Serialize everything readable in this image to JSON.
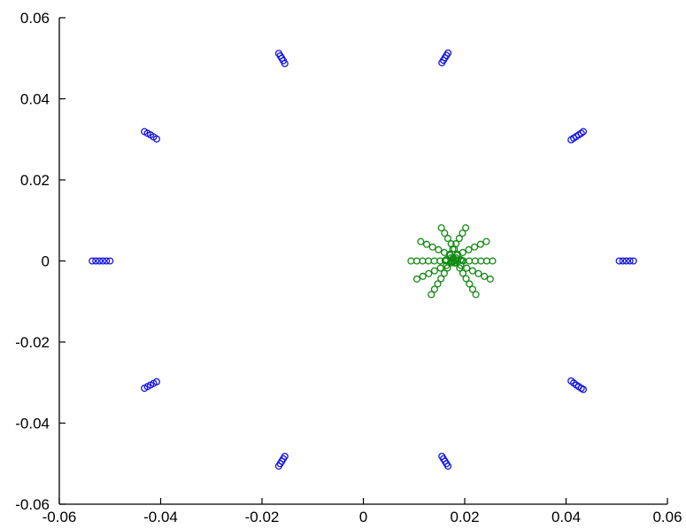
{
  "chart_data": {
    "type": "scatter",
    "title": "",
    "xlabel": "",
    "ylabel": "",
    "xlim": [
      -0.06,
      0.06
    ],
    "ylim": [
      -0.06,
      0.06
    ],
    "grid": false,
    "legend": "none",
    "xticks": [
      -0.06,
      -0.04,
      -0.02,
      0,
      0.02,
      0.04,
      0.06
    ],
    "yticks": [
      -0.06,
      -0.04,
      -0.02,
      0,
      0.02,
      0.04,
      0.06
    ],
    "xtick_labels": [
      "-0.06",
      "-0.04",
      "-0.02",
      "0",
      "0.02",
      "0.04",
      "0.06"
    ],
    "ytick_labels": [
      "-0.06",
      "-0.04",
      "-0.02",
      "0",
      "0.02",
      "0.04",
      "0.06"
    ],
    "series": [
      {
        "color": "#1515e0",
        "marker": "open-circle",
        "points": [
          [
            -0.0535,
            0.0
          ],
          [
            -0.0528,
            0.0
          ],
          [
            -0.0521,
            0.0
          ],
          [
            -0.0514,
            0.0
          ],
          [
            -0.0507,
            0.0
          ],
          [
            -0.05,
            0.0
          ],
          [
            0.0505,
            0.0
          ],
          [
            0.0512,
            0.0
          ],
          [
            0.0519,
            0.0
          ],
          [
            0.0526,
            0.0
          ],
          [
            0.0533,
            0.0
          ],
          [
            -0.0432,
            0.0319
          ],
          [
            -0.0426,
            0.0315
          ],
          [
            -0.042,
            0.0311
          ],
          [
            -0.0414,
            0.0306
          ],
          [
            -0.0408,
            0.0301
          ],
          [
            0.041,
            0.0299
          ],
          [
            0.0415,
            0.0303
          ],
          [
            0.042,
            0.0307
          ],
          [
            0.0425,
            0.0311
          ],
          [
            0.043,
            0.0315
          ],
          [
            0.0434,
            0.0319
          ],
          [
            -0.0432,
            -0.0314
          ],
          [
            -0.0426,
            -0.031
          ],
          [
            -0.042,
            -0.0306
          ],
          [
            -0.0414,
            -0.0302
          ],
          [
            -0.0408,
            -0.0298
          ],
          [
            0.041,
            -0.0296
          ],
          [
            0.0415,
            -0.0301
          ],
          [
            0.042,
            -0.0306
          ],
          [
            0.0425,
            -0.031
          ],
          [
            0.043,
            -0.0314
          ],
          [
            0.0434,
            -0.0317
          ],
          [
            -0.0167,
            0.0512
          ],
          [
            -0.0164,
            0.0506
          ],
          [
            -0.0161,
            0.05
          ],
          [
            -0.0158,
            0.0494
          ],
          [
            -0.0155,
            0.0487
          ],
          [
            0.0155,
            0.0489
          ],
          [
            0.0158,
            0.0495
          ],
          [
            0.0161,
            0.0501
          ],
          [
            0.0164,
            0.0507
          ],
          [
            0.0167,
            0.0513
          ],
          [
            -0.0167,
            -0.0506
          ],
          [
            -0.0164,
            -0.05
          ],
          [
            -0.0161,
            -0.0494
          ],
          [
            -0.0158,
            -0.0488
          ],
          [
            -0.0155,
            -0.0482
          ],
          [
            0.0155,
            -0.0482
          ],
          [
            0.0158,
            -0.0488
          ],
          [
            0.0161,
            -0.0494
          ],
          [
            0.0164,
            -0.05
          ],
          [
            0.0167,
            -0.0506
          ]
        ]
      },
      {
        "color": "#138a13",
        "marker": "open-circle",
        "points": [
          [
            0.0094,
            0.0
          ],
          [
            0.01055,
            0.0
          ],
          [
            0.0117,
            0.0
          ],
          [
            0.01285,
            0.0
          ],
          [
            0.014,
            0.0
          ],
          [
            0.01515,
            0.0
          ],
          [
            0.0163,
            0.0
          ],
          [
            0.01745,
            0.0
          ],
          [
            0.0186,
            0.0
          ],
          [
            0.01975,
            0.0
          ],
          [
            0.0209,
            0.0
          ],
          [
            0.02205,
            0.0
          ],
          [
            0.0232,
            0.0
          ],
          [
            0.02435,
            0.0
          ],
          [
            0.0255,
            0.0
          ],
          [
            0.01133,
            0.00478
          ],
          [
            0.01249,
            0.00411
          ],
          [
            0.01366,
            0.00344
          ],
          [
            0.01482,
            0.00277
          ],
          [
            0.01598,
            0.00209
          ],
          [
            0.01715,
            0.00142
          ],
          [
            0.01831,
            0.00075
          ],
          [
            0.01947,
            8e-05
          ],
          [
            0.01806,
            -0.00043
          ],
          [
            0.01922,
            -0.0011
          ],
          [
            0.02038,
            -0.00177
          ],
          [
            0.02155,
            -0.00244
          ],
          [
            0.02271,
            -0.00312
          ],
          [
            0.02387,
            -0.00379
          ],
          [
            0.02504,
            -0.00446
          ],
          [
            0.0154,
            0.00817
          ],
          [
            0.01604,
            0.00686
          ],
          [
            0.01668,
            0.00555
          ],
          [
            0.01732,
            0.00424
          ],
          [
            0.01796,
            0.00293
          ],
          [
            0.0186,
            0.00162
          ],
          [
            0.01924,
            0.00031
          ],
          [
            0.01836,
            -0.00042
          ],
          [
            0.019,
            -0.00173
          ],
          [
            0.01964,
            -0.00304
          ],
          [
            0.02028,
            -0.00435
          ],
          [
            0.02092,
            -0.00566
          ],
          [
            0.02156,
            -0.00697
          ],
          [
            0.0222,
            -0.00828
          ],
          [
            0.0202,
            0.00817
          ],
          [
            0.01956,
            0.00686
          ],
          [
            0.01892,
            0.00555
          ],
          [
            0.01828,
            0.00424
          ],
          [
            0.01764,
            0.00293
          ],
          [
            0.017,
            0.00162
          ],
          [
            0.01636,
            0.00031
          ],
          [
            0.01724,
            -0.00042
          ],
          [
            0.0166,
            -0.00173
          ],
          [
            0.01596,
            -0.00304
          ],
          [
            0.01532,
            -0.00435
          ],
          [
            0.01468,
            -0.00566
          ],
          [
            0.01404,
            -0.00697
          ],
          [
            0.0134,
            -0.00828
          ],
          [
            0.02427,
            0.00478
          ],
          [
            0.02311,
            0.00411
          ],
          [
            0.02194,
            0.00344
          ],
          [
            0.02078,
            0.00277
          ],
          [
            0.01962,
            0.00209
          ],
          [
            0.01845,
            0.00142
          ],
          [
            0.01729,
            0.00075
          ],
          [
            0.01613,
            8e-05
          ],
          [
            0.01754,
            -0.00043
          ],
          [
            0.01638,
            -0.0011
          ],
          [
            0.01522,
            -0.00177
          ],
          [
            0.01405,
            -0.00244
          ],
          [
            0.01289,
            -0.00312
          ],
          [
            0.01173,
            -0.00379
          ],
          [
            0.01056,
            -0.00446
          ],
          [
            0.0178,
            0.0
          ],
          [
            0.0176,
            0.0005
          ],
          [
            0.018,
            -0.0005
          ],
          [
            0.0174,
            -0.0003
          ],
          [
            0.0182,
            0.0003
          ]
        ]
      }
    ]
  }
}
